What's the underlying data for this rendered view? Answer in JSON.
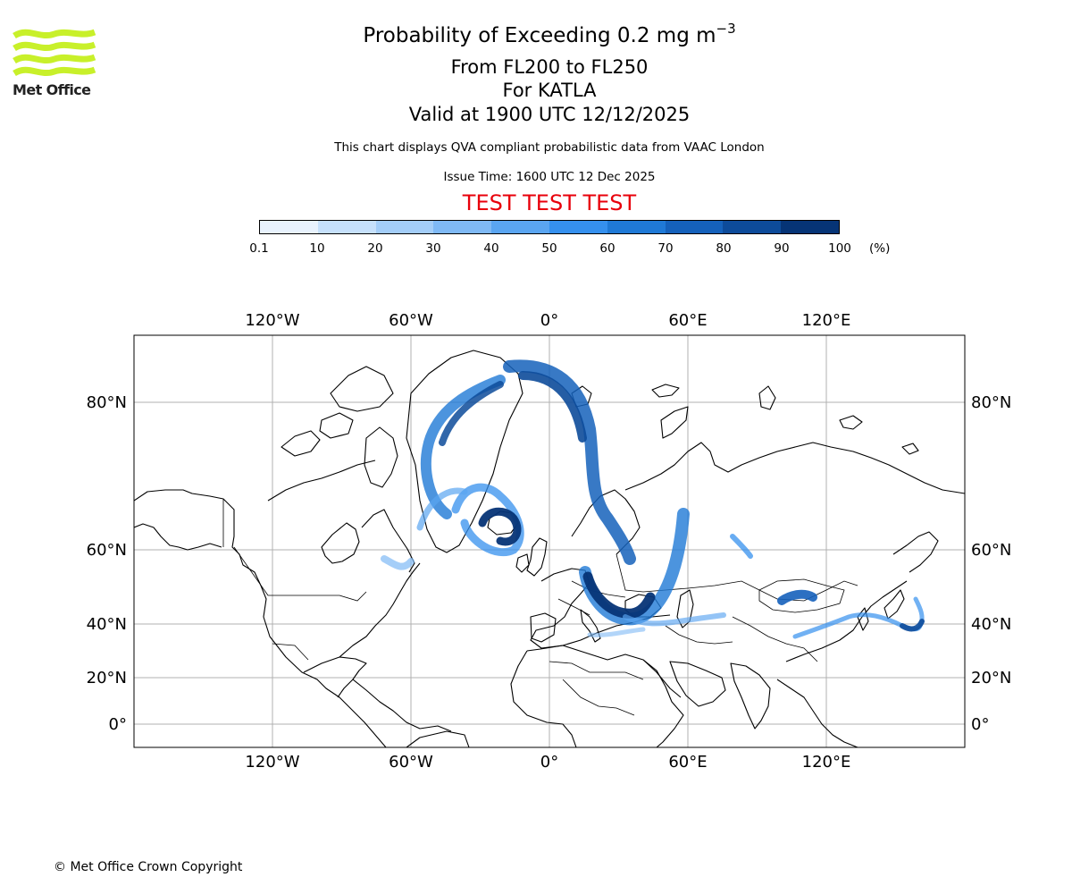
{
  "header": {
    "title_main": "Probability of Exceeding 0.2 mg m",
    "title_exponent": "−3",
    "flight_levels": "From FL200 to FL250",
    "volcano": "For KATLA",
    "valid_time": "Valid at 1900 UTC 12/12/2025",
    "description": "This chart displays QVA compliant probabilistic data from VAAC London",
    "issue_time": "Issue Time: 1600 UTC 12 Dec 2025",
    "test_banner": "TEST TEST TEST"
  },
  "logo": {
    "text": "Met Office",
    "color": "#c8f02a"
  },
  "colorbar": {
    "ticks": [
      "0.1",
      "10",
      "20",
      "30",
      "40",
      "50",
      "60",
      "70",
      "80",
      "90",
      "100"
    ],
    "unit": "(%)",
    "colors": [
      "#e8f2fd",
      "#c6e0fb",
      "#a3cdf8",
      "#7fb9f5",
      "#5aa5f1",
      "#3590ee",
      "#1f79d6",
      "#1561bb",
      "#0d4b9a",
      "#063476"
    ],
    "test_color": "#e8000b"
  },
  "map": {
    "lon_labels": [
      "120°W",
      "60°W",
      "0°",
      "60°E",
      "120°E"
    ],
    "lat_labels": [
      "80°N",
      "60°N",
      "40°N",
      "20°N",
      "0°"
    ]
  },
  "footer": {
    "copyright": "© Met Office Crown Copyright"
  }
}
